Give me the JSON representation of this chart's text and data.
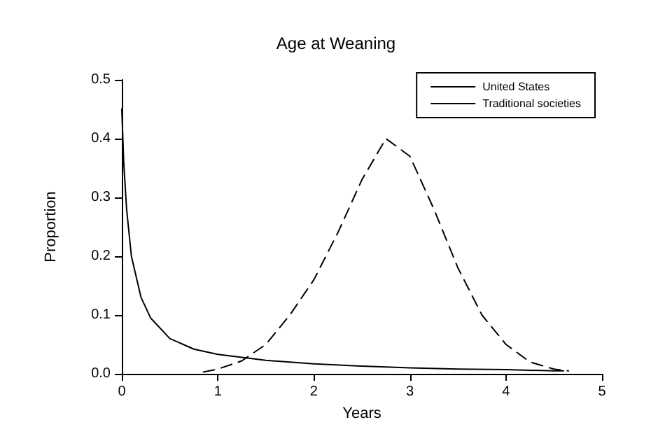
{
  "chart_data": {
    "type": "line",
    "title": "Age at Weaning",
    "xlabel": "Years",
    "ylabel": "Proportion",
    "xlim": [
      0,
      5
    ],
    "xticks": [
      0,
      1,
      2,
      3,
      4,
      5
    ],
    "ylim": [
      0,
      0.5
    ],
    "yticks": [
      {
        "value": 0,
        "label": "0.0"
      },
      0.1,
      0.2,
      0.3,
      0.4,
      0.5
    ],
    "grid": false,
    "legend": "top right",
    "marker": "none",
    "series": [
      {
        "name": "United States",
        "color": "#000000",
        "line_style": "solid",
        "x": [
          0,
          0.02,
          0.05,
          0.1,
          0.2,
          0.3,
          0.5,
          0.75,
          1,
          1.5,
          2,
          2.5,
          3,
          3.5,
          4,
          4.5,
          4.6
        ],
        "values": [
          0.45,
          0.36,
          0.28,
          0.2,
          0.13,
          0.095,
          0.06,
          0.042,
          0.033,
          0.023,
          0.017,
          0.013,
          0.01,
          0.008,
          0.007,
          0.005,
          0.005
        ]
      },
      {
        "name": "Traditional societies",
        "color": "#000000",
        "line_style": "dashed",
        "x": [
          0.85,
          1,
          1.25,
          1.5,
          1.75,
          2,
          2.25,
          2.5,
          2.75,
          3,
          3.25,
          3.5,
          3.75,
          4,
          4.25,
          4.5,
          4.65
        ],
        "values": [
          0.003,
          0.008,
          0.022,
          0.05,
          0.1,
          0.16,
          0.24,
          0.33,
          0.4,
          0.37,
          0.28,
          0.18,
          0.1,
          0.05,
          0.02,
          0.008,
          0.005
        ]
      }
    ]
  }
}
